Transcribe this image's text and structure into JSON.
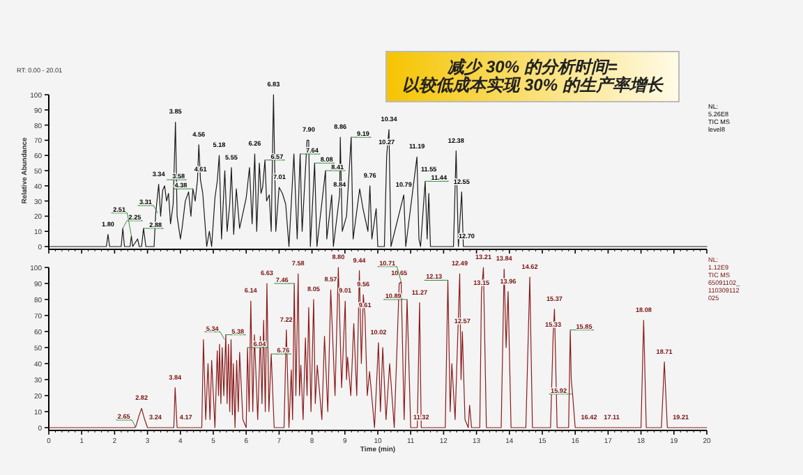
{
  "chart_data": [
    {
      "type": "line",
      "title": "减少 30% 的分析时间=\n以较低成本实现 30% 的生产率增长",
      "ylabel": "Relative Abundance",
      "xlim": [
        0,
        20
      ],
      "xticks": [
        {
          "value": 0,
          "label": null
        },
        {
          "value": 1,
          "label": null
        },
        {
          "value": 2,
          "label": null
        },
        {
          "value": 3,
          "label": null
        },
        {
          "value": 4,
          "label": null
        },
        {
          "value": 5,
          "label": null
        },
        {
          "value": 6,
          "label": null
        },
        {
          "value": 7,
          "label": null
        },
        {
          "value": 8,
          "label": null
        },
        {
          "value": 9,
          "label": null
        },
        {
          "value": 10,
          "label": null
        },
        {
          "value": 11,
          "label": null
        },
        {
          "value": 12,
          "label": null
        },
        {
          "value": 13,
          "label": null
        },
        {
          "value": 14,
          "label": null
        },
        {
          "value": 15,
          "label": null
        },
        {
          "value": 16,
          "label": null
        },
        {
          "value": 17,
          "label": null
        },
        {
          "value": 18,
          "label": null
        },
        {
          "value": 19,
          "label": null
        },
        {
          "value": 20,
          "label": null
        }
      ],
      "ylim": [
        0,
        100
      ],
      "yticks": [
        0,
        10,
        20,
        30,
        40,
        50,
        60,
        70,
        80,
        90,
        100
      ],
      "tick_labels": "y",
      "series": [
        {
          "color": "#1a1a1a",
          "x": [
            0,
            1.75,
            1.8,
            1.85,
            2.2,
            2.25,
            2.3,
            2.47,
            2.51,
            2.55,
            2.7,
            2.75,
            2.82,
            2.88,
            2.95,
            3.2,
            3.25,
            3.34,
            3.4,
            3.46,
            3.52,
            3.58,
            3.64,
            3.7,
            3.78,
            3.85,
            3.9,
            4.0,
            4.05,
            4.15,
            4.25,
            4.32,
            4.38,
            4.45,
            4.52,
            4.56,
            4.61,
            4.68,
            4.8,
            4.88,
            4.95,
            5.05,
            5.12,
            5.18,
            5.25,
            5.35,
            5.42,
            5.5,
            5.55,
            5.62,
            5.7,
            5.8,
            5.9,
            6.0,
            6.1,
            6.18,
            6.26,
            6.32,
            6.4,
            6.45,
            6.5,
            6.57,
            6.62,
            6.7,
            6.76,
            6.83,
            6.9,
            7.0,
            7.1,
            7.2,
            7.3,
            7.45,
            7.55,
            7.64,
            7.7,
            7.85,
            7.9,
            7.95,
            8.08,
            8.15,
            8.41,
            8.45,
            8.6,
            8.65,
            8.84,
            8.86,
            8.92,
            9.05,
            9.19,
            9.25,
            9.45,
            9.55,
            9.7,
            9.76,
            9.82,
            9.95,
            10.0,
            10.2,
            10.27,
            10.34,
            10.4,
            10.79,
            10.85,
            11.19,
            11.25,
            11.3,
            11.44,
            11.5,
            11.55,
            11.6,
            12.3,
            12.38,
            12.45,
            12.55,
            12.6,
            12.7,
            20
          ],
          "values": [
            0,
            0,
            8,
            0,
            0,
            12,
            0,
            0,
            7,
            0,
            5,
            0,
            0,
            12,
            0,
            0,
            22,
            41,
            20,
            37,
            40,
            30,
            35,
            15,
            28,
            82,
            20,
            5,
            12,
            30,
            36,
            20,
            38,
            30,
            44,
            67,
            44,
            35,
            0,
            10,
            0,
            32,
            43,
            60,
            5,
            50,
            10,
            28,
            52,
            8,
            38,
            12,
            22,
            32,
            52,
            15,
            61,
            10,
            55,
            35,
            39,
            57,
            30,
            34,
            10,
            100,
            10,
            39,
            35,
            28,
            0,
            61,
            5,
            61,
            10,
            70,
            70,
            0,
            55,
            0,
            50,
            5,
            34,
            0,
            34,
            72,
            10,
            20,
            72,
            5,
            38,
            25,
            10,
            40,
            5,
            25,
            0,
            0,
            60,
            77,
            0,
            34,
            0,
            59,
            5,
            0,
            43,
            5,
            35,
            0,
            0,
            63,
            0,
            36,
            0,
            0,
            0
          ]
        }
      ],
      "annotations": [
        "RT: 0.00 - 20.01",
        "NL:\n5.26E8\nTIC MS\nlevel8",
        {
          "text": "1.80",
          "x": 1.8,
          "y": 8
        },
        {
          "text": "2.25",
          "x": 2.25,
          "y": 12
        },
        {
          "text": "2.51",
          "x": 2.51,
          "y": 7
        },
        {
          "text": "2.88",
          "x": 2.88,
          "y": 12
        },
        {
          "text": "3.31",
          "x": 3.31,
          "y": 22
        },
        {
          "text": "3.34",
          "x": 3.34,
          "y": 41
        },
        {
          "text": "3.58",
          "x": 3.58,
          "y": 44
        },
        {
          "text": "3.85",
          "x": 3.85,
          "y": 82
        },
        {
          "text": "4.38",
          "x": 4.38,
          "y": 38
        },
        {
          "text": "4.56",
          "x": 4.56,
          "y": 67
        },
        {
          "text": "4.61",
          "x": 4.61,
          "y": 44
        },
        {
          "text": "5.18",
          "x": 5.18,
          "y": 60
        },
        {
          "text": "5.55",
          "x": 5.55,
          "y": 52
        },
        {
          "text": "6.26",
          "x": 6.26,
          "y": 61
        },
        {
          "text": "6.57",
          "x": 6.57,
          "y": 57
        },
        {
          "text": "6.83",
          "x": 6.83,
          "y": 100
        },
        {
          "text": "7.01",
          "x": 7.01,
          "y": 39
        },
        {
          "text": "7.64",
          "x": 7.64,
          "y": 61
        },
        {
          "text": "7.90",
          "x": 7.9,
          "y": 70
        },
        {
          "text": "8.08",
          "x": 8.08,
          "y": 55
        },
        {
          "text": "8.41",
          "x": 8.41,
          "y": 50
        },
        {
          "text": "8.84",
          "x": 8.84,
          "y": 34
        },
        {
          "text": "8.86",
          "x": 8.86,
          "y": 72
        },
        {
          "text": "9.19",
          "x": 9.19,
          "y": 72
        },
        {
          "text": "9.76",
          "x": 9.76,
          "y": 40
        },
        {
          "text": "10.34",
          "x": 10.34,
          "y": 77
        },
        {
          "text": "10.27",
          "x": 10.27,
          "y": 62
        },
        {
          "text": "10.79",
          "x": 10.79,
          "y": 34
        },
        {
          "text": "11.19",
          "x": 11.19,
          "y": 59
        },
        {
          "text": "11.55",
          "x": 11.55,
          "y": 44
        },
        {
          "text": "11.44",
          "x": 11.44,
          "y": 43
        },
        {
          "text": "12.38",
          "x": 12.38,
          "y": 63
        },
        {
          "text": "12.55",
          "x": 12.55,
          "y": 36
        },
        {
          "text": "12.70",
          "x": 12.7,
          "y": 0
        }
      ]
    },
    {
      "type": "line",
      "xlabel": "Time (min)",
      "xlim": [
        0,
        20
      ],
      "xticks": [
        0,
        1,
        2,
        3,
        4,
        5,
        6,
        7,
        8,
        9,
        10,
        11,
        12,
        13,
        14,
        15,
        16,
        17,
        18,
        19,
        20
      ],
      "ylim": [
        0,
        100
      ],
      "yticks": [
        0,
        10,
        20,
        30,
        40,
        50,
        60,
        70,
        80,
        90,
        100
      ],
      "series": [
        {
          "color": "#8b1a1a",
          "x": [
            0,
            2.6,
            2.65,
            2.75,
            2.82,
            2.9,
            3.0,
            3.24,
            3.8,
            3.84,
            3.9,
            4.17,
            4.65,
            4.7,
            4.77,
            4.84,
            4.9,
            4.95,
            5.05,
            5.12,
            5.16,
            5.19,
            5.23,
            5.27,
            5.32,
            5.38,
            5.42,
            5.46,
            5.5,
            5.54,
            5.58,
            5.61,
            5.66,
            5.71,
            5.76,
            5.8,
            5.9,
            6.0,
            6.04,
            6.09,
            6.14,
            6.2,
            6.25,
            6.35,
            6.43,
            6.48,
            6.53,
            6.58,
            6.63,
            6.69,
            6.76,
            6.85,
            7.15,
            7.22,
            7.3,
            7.37,
            7.41,
            7.46,
            7.51,
            7.58,
            7.62,
            7.66,
            7.73,
            7.8,
            7.85,
            7.9,
            7.97,
            8.05,
            8.1,
            8.16,
            8.3,
            8.38,
            8.48,
            8.57,
            8.7,
            8.8,
            8.9,
            9.01,
            9.05,
            9.08,
            9.18,
            9.27,
            9.36,
            9.44,
            9.5,
            9.56,
            9.61,
            9.68,
            9.75,
            9.9,
            10.02,
            10.08,
            10.15,
            10.25,
            10.36,
            10.5,
            10.65,
            10.71,
            10.8,
            10.89,
            11.0,
            11.2,
            11.27,
            11.32,
            12.05,
            12.13,
            12.2,
            12.25,
            12.35,
            12.49,
            12.53,
            12.57,
            12.65,
            12.75,
            12.79,
            12.85,
            13.1,
            13.15,
            13.21,
            13.3,
            13.75,
            13.84,
            13.9,
            13.96,
            14.05,
            14.5,
            14.62,
            14.7,
            15.25,
            15.33,
            15.37,
            15.45,
            15.8,
            15.85,
            15.88,
            15.92,
            16.0,
            16.42,
            17.11,
            18.0,
            18.08,
            18.16,
            18.62,
            18.71,
            18.8,
            19.21,
            20
          ],
          "values": [
            0,
            0,
            1,
            8,
            12,
            6,
            0,
            0,
            0,
            25,
            0,
            0,
            0,
            55,
            5,
            40,
            5,
            42,
            0,
            48,
            20,
            52,
            15,
            50,
            20,
            58,
            15,
            52,
            10,
            55,
            8,
            40,
            0,
            42,
            10,
            47,
            5,
            0,
            50,
            10,
            79,
            10,
            58,
            5,
            57,
            15,
            67,
            10,
            90,
            10,
            46,
            0,
            0,
            61,
            0,
            36,
            5,
            90,
            20,
            96,
            20,
            39,
            5,
            56,
            20,
            75,
            10,
            80,
            15,
            39,
            5,
            57,
            10,
            86,
            20,
            100,
            25,
            79,
            30,
            44,
            20,
            65,
            20,
            98,
            40,
            83,
            70,
            20,
            35,
            0,
            53,
            10,
            50,
            5,
            40,
            0,
            90,
            91,
            5,
            80,
            0,
            0,
            78,
            0,
            0,
            92,
            10,
            40,
            5,
            96,
            30,
            60,
            5,
            0,
            14,
            0,
            0,
            84,
            100,
            0,
            0,
            99,
            50,
            85,
            0,
            0,
            94,
            0,
            0,
            58,
            74,
            0,
            0,
            61,
            30,
            21,
            0,
            0,
            0,
            0,
            67,
            0,
            0,
            41,
            0,
            0,
            0
          ]
        }
      ],
      "annotations": [
        "NL:\n1.12E9\nTIC MS\n65091102_\n110309112\n025",
        {
          "text": "2.65",
          "x": 2.65,
          "y": 0
        },
        {
          "text": "2.82",
          "x": 2.82,
          "y": 12
        },
        {
          "text": "3.24",
          "x": 3.24,
          "y": 0
        },
        {
          "text": "3.84",
          "x": 3.84,
          "y": 25
        },
        {
          "text": "4.17",
          "x": 4.17,
          "y": 0
        },
        {
          "text": "5.34",
          "x": 5.34,
          "y": 55
        },
        {
          "text": "5.38",
          "x": 5.38,
          "y": 58
        },
        {
          "text": "6.04",
          "x": 6.04,
          "y": 50
        },
        {
          "text": "6.14",
          "x": 6.14,
          "y": 79
        },
        {
          "text": "6.63",
          "x": 6.63,
          "y": 90
        },
        {
          "text": "6.76",
          "x": 6.76,
          "y": 46
        },
        {
          "text": "7.22",
          "x": 7.22,
          "y": 61
        },
        {
          "text": "7.46",
          "x": 7.46,
          "y": 90
        },
        {
          "text": "7.58",
          "x": 7.58,
          "y": 96
        },
        {
          "text": "8.05",
          "x": 8.05,
          "y": 80
        },
        {
          "text": "8.57",
          "x": 8.57,
          "y": 86
        },
        {
          "text": "8.80",
          "x": 8.8,
          "y": 100
        },
        {
          "text": "9.01",
          "x": 9.01,
          "y": 79
        },
        {
          "text": "9.44",
          "x": 9.44,
          "y": 98
        },
        {
          "text": "9.56",
          "x": 9.56,
          "y": 83
        },
        {
          "text": "9.61",
          "x": 9.61,
          "y": 70
        },
        {
          "text": "10.02",
          "x": 10.02,
          "y": 53
        },
        {
          "text": "10.65",
          "x": 10.65,
          "y": 90
        },
        {
          "text": "10.71",
          "x": 10.71,
          "y": 91
        },
        {
          "text": "10.89",
          "x": 10.89,
          "y": 80
        },
        {
          "text": "11.27",
          "x": 11.27,
          "y": 78
        },
        {
          "text": "11.32",
          "x": 11.32,
          "y": 0
        },
        {
          "text": "12.13",
          "x": 12.13,
          "y": 92
        },
        {
          "text": "12.49",
          "x": 12.49,
          "y": 96
        },
        {
          "text": "12.57",
          "x": 12.57,
          "y": 60
        },
        {
          "text": "13.15",
          "x": 13.15,
          "y": 84
        },
        {
          "text": "13.21",
          "x": 13.21,
          "y": 100
        },
        {
          "text": "13.84",
          "x": 13.84,
          "y": 99
        },
        {
          "text": "13.96",
          "x": 13.96,
          "y": 85
        },
        {
          "text": "14.62",
          "x": 14.62,
          "y": 94
        },
        {
          "text": "15.33",
          "x": 15.33,
          "y": 58
        },
        {
          "text": "15.37",
          "x": 15.37,
          "y": 74
        },
        {
          "text": "15.85",
          "x": 15.85,
          "y": 61
        },
        {
          "text": "15.92",
          "x": 15.92,
          "y": 21
        },
        {
          "text": "16.42",
          "x": 16.42,
          "y": 0
        },
        {
          "text": "17.11",
          "x": 17.11,
          "y": 0
        },
        {
          "text": "18.08",
          "x": 18.08,
          "y": 67
        },
        {
          "text": "18.71",
          "x": 18.71,
          "y": 41
        },
        {
          "text": "19.21",
          "x": 19.21,
          "y": 0
        }
      ]
    }
  ]
}
